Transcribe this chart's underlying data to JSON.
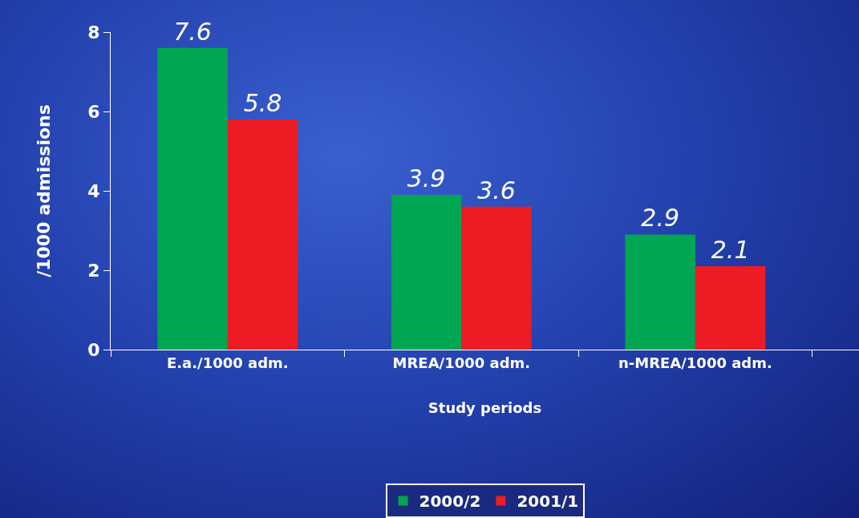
{
  "chart_data": {
    "type": "bar",
    "xlabel": "Study periods",
    "ylabel": "/1000 admissions",
    "categories": [
      "E.a./1000 adm.",
      "MREA/1000 adm.",
      "n-MREA/1000 adm."
    ],
    "series": [
      {
        "name": "2000/2",
        "color": "#00a651",
        "values": [
          7.6,
          3.9,
          2.9
        ]
      },
      {
        "name": "2001/1",
        "color": "#ed1c24",
        "values": [
          5.8,
          3.6,
          2.1
        ]
      }
    ],
    "ylim": [
      0,
      8
    ],
    "yticks": [
      0,
      2,
      4,
      6,
      8
    ],
    "data_labels": true,
    "legend": "bottom"
  }
}
